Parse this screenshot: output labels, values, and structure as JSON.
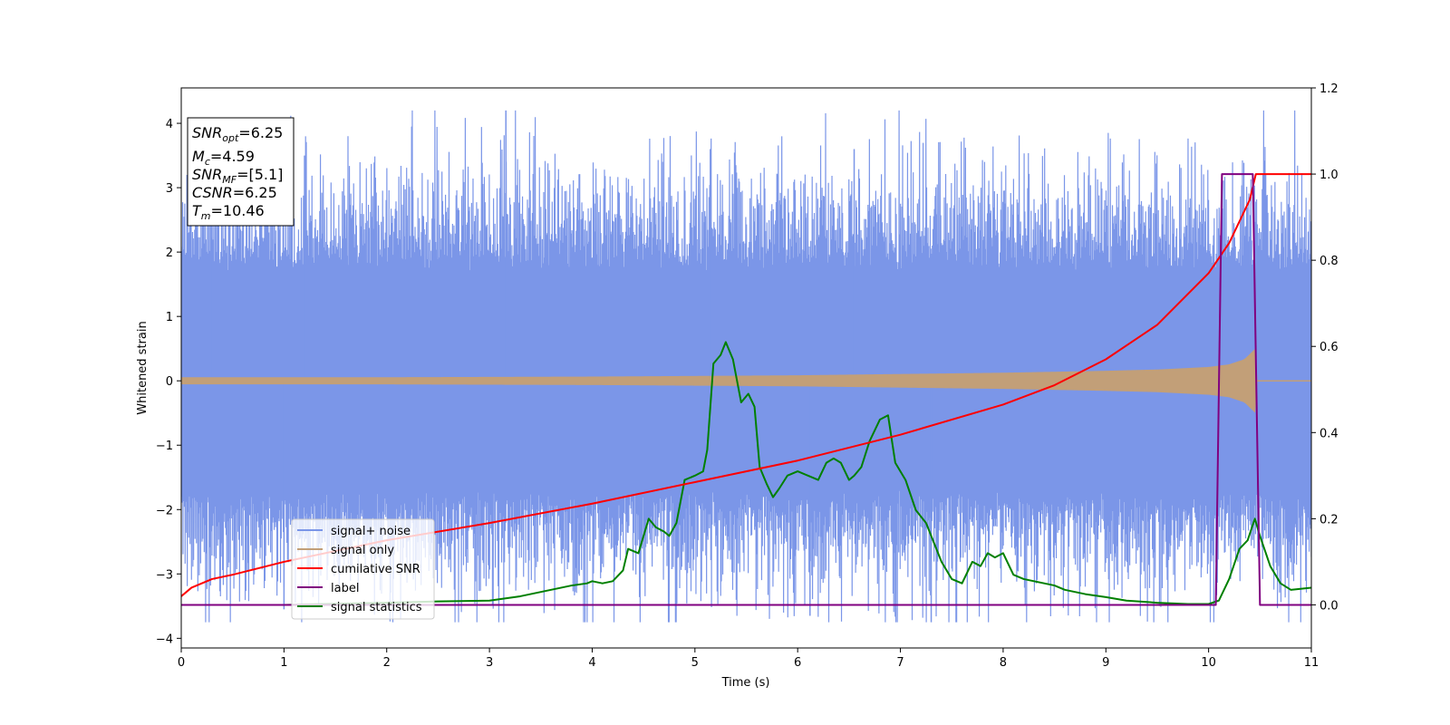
{
  "chart_data": {
    "type": "line",
    "xlabel": "Time (s)",
    "ylabel_left": "Whitened strain",
    "ylabel_right": "",
    "xlim": [
      0,
      11
    ],
    "ylim_left": [
      -4.15,
      4.55
    ],
    "ylim_right": [
      -0.1,
      1.2
    ],
    "xticks": [
      "0",
      "1",
      "2",
      "3",
      "4",
      "5",
      "6",
      "7",
      "8",
      "9",
      "10",
      "11"
    ],
    "yticks_left": [
      "−4",
      "−3",
      "−2",
      "−1",
      "0",
      "1",
      "2",
      "3",
      "4"
    ],
    "yticks_right": [
      "0.0",
      "0.2",
      "0.4",
      "0.6",
      "0.8",
      "1.0",
      "1.2"
    ],
    "grid": false,
    "legend_position": "lower-left",
    "annotation": {
      "lines": [
        {
          "base": "SNR",
          "sub": "opt",
          "rest": "=6.25"
        },
        {
          "base": "M",
          "sub": "c",
          "rest": "=4.59"
        },
        {
          "base": "SNR",
          "sub": "MF",
          "rest": "=[5.1]"
        },
        {
          "base": "CSNR",
          "sub": "",
          "rest": "=6.25"
        },
        {
          "base": "T",
          "sub": "m",
          "rest": "=10.46"
        }
      ]
    },
    "series": [
      {
        "name": "signal+ noise",
        "axis": "left",
        "color": "#7b96e8",
        "kind": "noise",
        "t_start": 0,
        "t_end": 11,
        "core_amplitude": 1.7,
        "peak_max": 4.2,
        "peak_min": -3.75
      },
      {
        "name": "signal only",
        "axis": "left",
        "color": "#c29f78",
        "kind": "chirp_envelope",
        "t": [
          0,
          2,
          4,
          6,
          8,
          9,
          9.5,
          10,
          10.2,
          10.35,
          10.46,
          10.47,
          11
        ],
        "amplitude": [
          0.05,
          0.05,
          0.06,
          0.08,
          0.12,
          0.15,
          0.17,
          0.21,
          0.25,
          0.33,
          0.5,
          0.0,
          0.0
        ]
      },
      {
        "name": "cumilative SNR",
        "axis": "right",
        "color": "#ff0000",
        "t": [
          0,
          0.1,
          0.3,
          0.5,
          1,
          2,
          3,
          4,
          5,
          6,
          7,
          8,
          8.5,
          9,
          9.5,
          10,
          10.2,
          10.4,
          10.46,
          11
        ],
        "values": [
          0.02,
          0.04,
          0.06,
          0.07,
          0.1,
          0.15,
          0.19,
          0.235,
          0.285,
          0.335,
          0.395,
          0.465,
          0.51,
          0.57,
          0.65,
          0.77,
          0.84,
          0.94,
          1.0,
          1.0
        ]
      },
      {
        "name": "label",
        "axis": "right",
        "color": "#800080",
        "t": [
          0,
          10.07,
          10.13,
          10.43,
          10.5,
          11
        ],
        "values": [
          0,
          0,
          1,
          1,
          0,
          0
        ]
      },
      {
        "name": "signal statistics",
        "axis": "right",
        "color": "#008000",
        "t": [
          0,
          1,
          2,
          2.5,
          3,
          3.3,
          3.6,
          3.8,
          3.95,
          4,
          4.1,
          4.2,
          4.3,
          4.35,
          4.45,
          4.55,
          4.62,
          4.7,
          4.75,
          4.82,
          4.9,
          5,
          5.08,
          5.12,
          5.18,
          5.25,
          5.3,
          5.37,
          5.45,
          5.52,
          5.58,
          5.63,
          5.7,
          5.76,
          5.82,
          5.9,
          6,
          6.1,
          6.2,
          6.28,
          6.35,
          6.42,
          6.5,
          6.55,
          6.62,
          6.7,
          6.8,
          6.88,
          6.95,
          7.05,
          7.15,
          7.25,
          7.3,
          7.4,
          7.5,
          7.6,
          7.7,
          7.78,
          7.85,
          7.92,
          8,
          8.1,
          8.2,
          8.3,
          8.4,
          8.5,
          8.6,
          8.7,
          8.8,
          9,
          9.2,
          9.5,
          9.8,
          10,
          10.1,
          10.2,
          10.3,
          10.38,
          10.45,
          10.5,
          10.6,
          10.7,
          10.8,
          11
        ],
        "values": [
          0,
          0.0,
          0.005,
          0.008,
          0.01,
          0.02,
          0.035,
          0.045,
          0.05,
          0.055,
          0.05,
          0.055,
          0.08,
          0.13,
          0.12,
          0.2,
          0.18,
          0.17,
          0.16,
          0.19,
          0.29,
          0.3,
          0.31,
          0.36,
          0.56,
          0.58,
          0.61,
          0.57,
          0.47,
          0.49,
          0.46,
          0.32,
          0.28,
          0.25,
          0.27,
          0.3,
          0.31,
          0.3,
          0.29,
          0.33,
          0.34,
          0.33,
          0.29,
          0.3,
          0.32,
          0.38,
          0.43,
          0.44,
          0.33,
          0.29,
          0.22,
          0.19,
          0.16,
          0.1,
          0.06,
          0.05,
          0.1,
          0.09,
          0.12,
          0.11,
          0.12,
          0.07,
          0.06,
          0.055,
          0.05,
          0.045,
          0.035,
          0.03,
          0.025,
          0.018,
          0.01,
          0.005,
          0.002,
          0.002,
          0.01,
          0.06,
          0.13,
          0.15,
          0.2,
          0.16,
          0.09,
          0.05,
          0.035,
          0.04
        ]
      }
    ]
  }
}
